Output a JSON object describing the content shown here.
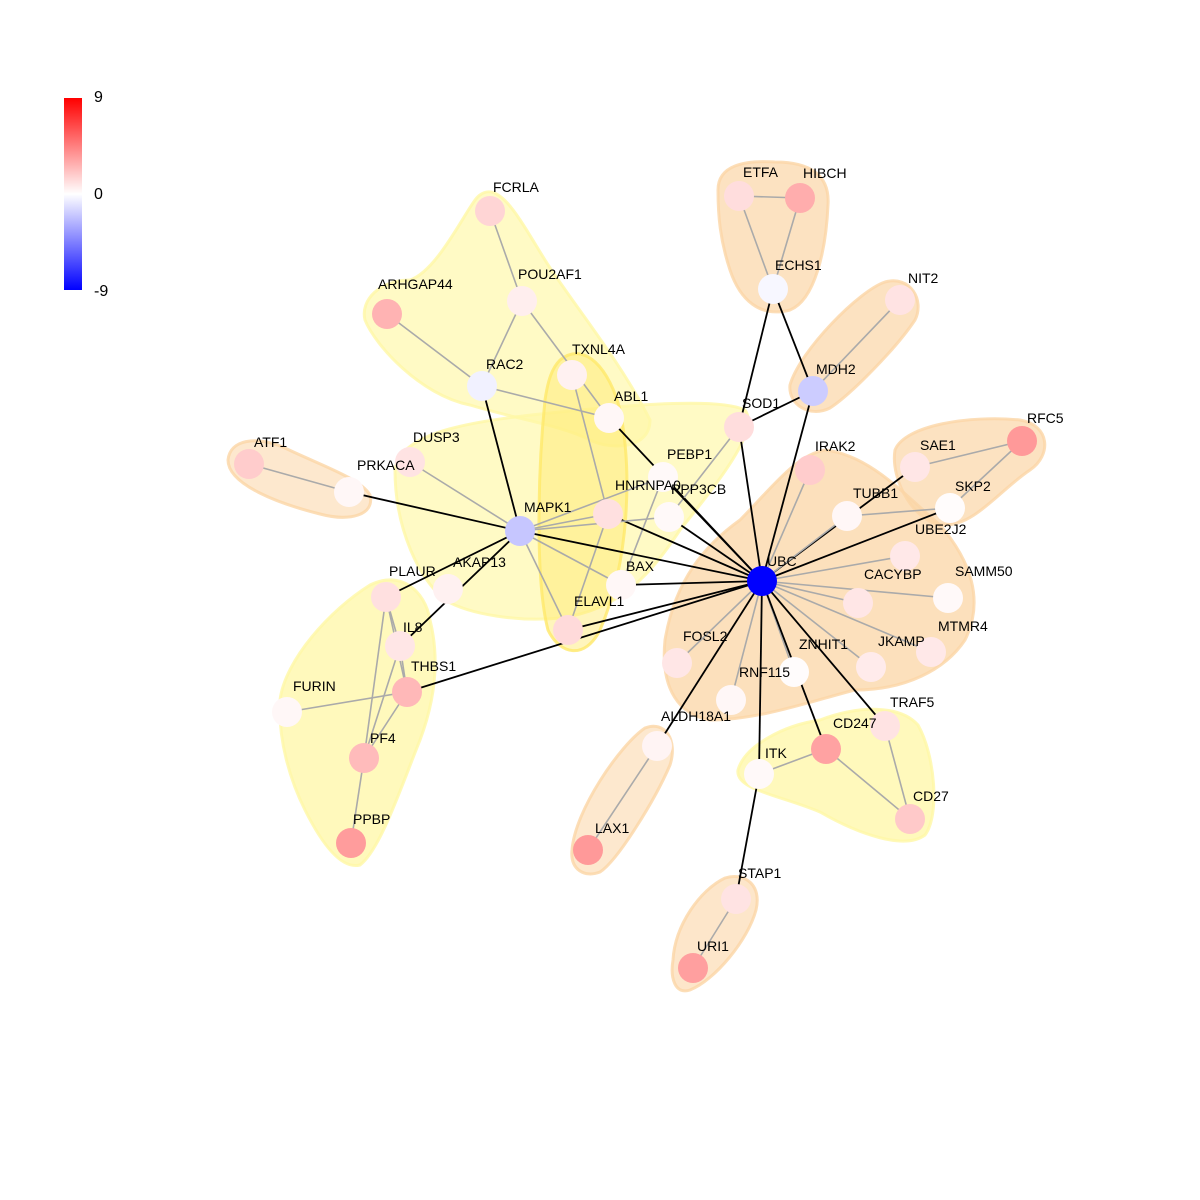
{
  "legend": {
    "max": "9",
    "mid": "0",
    "min": "-9"
  },
  "colors": {
    "edge_hub": "#000000",
    "edge_other": "#aaaaaa",
    "module_yellow": "#fff7a6",
    "module_orange": "#fbd6a6"
  },
  "nodes": [
    {
      "id": "FCRLA",
      "label": "FCRLA",
      "value": 1.5
    },
    {
      "id": "POU2AF1",
      "label": "POU2AF1",
      "value": 0.6
    },
    {
      "id": "ARHGAP44",
      "label": "ARHGAP44",
      "value": 2.7
    },
    {
      "id": "RAC2",
      "label": "RAC2",
      "value": -0.5
    },
    {
      "id": "TXNL4A",
      "label": "TXNL4A",
      "value": 0.5
    },
    {
      "id": "ABL1",
      "label": "ABL1",
      "value": 0.3
    },
    {
      "id": "ETFA",
      "label": "ETFA",
      "value": 1.2
    },
    {
      "id": "HIBCH",
      "label": "HIBCH",
      "value": 2.9
    },
    {
      "id": "ECHS1",
      "label": "ECHS1",
      "value": -0.3
    },
    {
      "id": "NIT2",
      "label": "NIT2",
      "value": 1.0
    },
    {
      "id": "MDH2",
      "label": "MDH2",
      "value": -1.8
    },
    {
      "id": "SOD1",
      "label": "SOD1",
      "value": 1.2
    },
    {
      "id": "RFC5",
      "label": "RFC5",
      "value": 3.6
    },
    {
      "id": "SAE1",
      "label": "SAE1",
      "value": 0.9
    },
    {
      "id": "SKP2",
      "label": "SKP2",
      "value": 0.1
    },
    {
      "id": "ATF1",
      "label": "ATF1",
      "value": 1.8
    },
    {
      "id": "PRKACA",
      "label": "PRKACA",
      "value": 0.3
    },
    {
      "id": "DUSP3",
      "label": "DUSP3",
      "value": 1.0
    },
    {
      "id": "PEBP1",
      "label": "PEBP1",
      "value": 0.2
    },
    {
      "id": "IRAK2",
      "label": "IRAK2",
      "value": 1.8
    },
    {
      "id": "TUBB1",
      "label": "TUBB1",
      "value": 0.3
    },
    {
      "id": "HNRNPA0",
      "label": "HNRNPA0",
      "value": 1.1
    },
    {
      "id": "PPP3CB",
      "label": "PPP3CB",
      "value": 0.2
    },
    {
      "id": "MAPK1",
      "label": "MAPK1",
      "value": -2.0
    },
    {
      "id": "UBE2J2",
      "label": "UBE2J2",
      "value": 0.8
    },
    {
      "id": "UBC",
      "label": "UBC",
      "value": -9.0
    },
    {
      "id": "PLAUR",
      "label": "PLAUR",
      "value": 1.1
    },
    {
      "id": "AKAP13",
      "label": "AKAP13",
      "value": 0.5
    },
    {
      "id": "BAX",
      "label": "BAX",
      "value": 0.3
    },
    {
      "id": "CACYBP",
      "label": "CACYBP",
      "value": 0.9
    },
    {
      "id": "SAMM50",
      "label": "SAMM50",
      "value": 0.2
    },
    {
      "id": "ELAVL1",
      "label": "ELAVL1",
      "value": 1.3
    },
    {
      "id": "IL8",
      "label": "IL8",
      "value": 0.9
    },
    {
      "id": "FOSL2",
      "label": "FOSL2",
      "value": 0.9
    },
    {
      "id": "ZNHIT1",
      "label": "ZNHIT1",
      "value": 0.1
    },
    {
      "id": "JKAMP",
      "label": "JKAMP",
      "value": 0.7
    },
    {
      "id": "MTMR4",
      "label": "MTMR4",
      "value": 0.8
    },
    {
      "id": "THBS1",
      "label": "THBS1",
      "value": 2.5
    },
    {
      "id": "RNF115",
      "label": "RNF115",
      "value": 0.3
    },
    {
      "id": "FURIN",
      "label": "FURIN",
      "value": 0.3
    },
    {
      "id": "TRAF5",
      "label": "TRAF5",
      "value": 1.0
    },
    {
      "id": "ALDH18A1",
      "label": "ALDH18A1",
      "value": 0.4
    },
    {
      "id": "CD247",
      "label": "CD247",
      "value": 3.3
    },
    {
      "id": "PF4",
      "label": "PF4",
      "value": 2.4
    },
    {
      "id": "ITK",
      "label": "ITK",
      "value": 0.2
    },
    {
      "id": "CD27",
      "label": "CD27",
      "value": 1.9
    },
    {
      "id": "PPBP",
      "label": "PPBP",
      "value": 3.5
    },
    {
      "id": "LAX1",
      "label": "LAX1",
      "value": 3.6
    },
    {
      "id": "STAP1",
      "label": "STAP1",
      "value": 1.0
    },
    {
      "id": "URI1",
      "label": "URI1",
      "value": 3.4
    }
  ],
  "edges": [
    {
      "source": "FCRLA",
      "target": "POU2AF1",
      "hub": false
    },
    {
      "source": "POU2AF1",
      "target": "RAC2",
      "hub": false
    },
    {
      "source": "POU2AF1",
      "target": "ABL1",
      "hub": false
    },
    {
      "source": "ARHGAP44",
      "target": "RAC2",
      "hub": false
    },
    {
      "source": "RAC2",
      "target": "ABL1",
      "hub": false
    },
    {
      "source": "RAC2",
      "target": "MAPK1",
      "hub": true
    },
    {
      "source": "TXNL4A",
      "target": "HNRNPA0",
      "hub": false
    },
    {
      "source": "ABL1",
      "target": "UBC",
      "hub": true
    },
    {
      "source": "ETFA",
      "target": "HIBCH",
      "hub": false
    },
    {
      "source": "ETFA",
      "target": "ECHS1",
      "hub": false
    },
    {
      "source": "HIBCH",
      "target": "ECHS1",
      "hub": false
    },
    {
      "source": "ECHS1",
      "target": "SOD1",
      "hub": true
    },
    {
      "source": "ECHS1",
      "target": "MDH2",
      "hub": true
    },
    {
      "source": "NIT2",
      "target": "MDH2",
      "hub": false
    },
    {
      "source": "MDH2",
      "target": "SOD1",
      "hub": true
    },
    {
      "source": "MDH2",
      "target": "UBC",
      "hub": true
    },
    {
      "source": "SOD1",
      "target": "UBC",
      "hub": true
    },
    {
      "source": "SOD1",
      "target": "PPP3CB",
      "hub": false
    },
    {
      "source": "RFC5",
      "target": "SAE1",
      "hub": false
    },
    {
      "source": "RFC5",
      "target": "SKP2",
      "hub": false
    },
    {
      "source": "SAE1",
      "target": "UBC",
      "hub": true
    },
    {
      "source": "SKP2",
      "target": "UBC",
      "hub": true
    },
    {
      "source": "SKP2",
      "target": "TUBB1",
      "hub": false
    },
    {
      "source": "ATF1",
      "target": "PRKACA",
      "hub": false
    },
    {
      "source": "PRKACA",
      "target": "MAPK1",
      "hub": true
    },
    {
      "source": "DUSP3",
      "target": "MAPK1",
      "hub": false
    },
    {
      "source": "PEBP1",
      "target": "MAPK1",
      "hub": false
    },
    {
      "source": "PEBP1",
      "target": "UBC",
      "hub": true
    },
    {
      "source": "PEBP1",
      "target": "BAX",
      "hub": false
    },
    {
      "source": "IRAK2",
      "target": "UBC",
      "hub": false
    },
    {
      "source": "TUBB1",
      "target": "UBC",
      "hub": false
    },
    {
      "source": "HNRNPA0",
      "target": "MAPK1",
      "hub": false
    },
    {
      "source": "HNRNPA0",
      "target": "UBC",
      "hub": true
    },
    {
      "source": "HNRNPA0",
      "target": "ELAVL1",
      "hub": false
    },
    {
      "source": "PPP3CB",
      "target": "MAPK1",
      "hub": false
    },
    {
      "source": "PPP3CB",
      "target": "UBC",
      "hub": true
    },
    {
      "source": "MAPK1",
      "target": "UBC",
      "hub": true
    },
    {
      "source": "MAPK1",
      "target": "BAX",
      "hub": false
    },
    {
      "source": "MAPK1",
      "target": "ELAVL1",
      "hub": false
    },
    {
      "source": "MAPK1",
      "target": "PLAUR",
      "hub": true
    },
    {
      "source": "MAPK1",
      "target": "IL8",
      "hub": true
    },
    {
      "source": "UBE2J2",
      "target": "UBC",
      "hub": false
    },
    {
      "source": "CACYBP",
      "target": "UBC",
      "hub": false
    },
    {
      "source": "SAMM50",
      "target": "UBC",
      "hub": false
    },
    {
      "source": "BAX",
      "target": "UBC",
      "hub": true
    },
    {
      "source": "ELAVL1",
      "target": "UBC",
      "hub": true
    },
    {
      "source": "FOSL2",
      "target": "UBC",
      "hub": false
    },
    {
      "source": "ZNHIT1",
      "target": "UBC",
      "hub": false
    },
    {
      "source": "JKAMP",
      "target": "UBC",
      "hub": false
    },
    {
      "source": "MTMR4",
      "target": "UBC",
      "hub": false
    },
    {
      "source": "RNF115",
      "target": "UBC",
      "hub": false
    },
    {
      "source": "TRAF5",
      "target": "UBC",
      "hub": true
    },
    {
      "source": "CD247",
      "target": "UBC",
      "hub": true
    },
    {
      "source": "ITK",
      "target": "UBC",
      "hub": true
    },
    {
      "source": "ALDH18A1",
      "target": "UBC",
      "hub": true
    },
    {
      "source": "THBS1",
      "target": "UBC",
      "hub": true
    },
    {
      "source": "PLAUR",
      "target": "IL8",
      "hub": false
    },
    {
      "source": "PLAUR",
      "target": "THBS1",
      "hub": false
    },
    {
      "source": "PLAUR",
      "target": "PF4",
      "hub": false
    },
    {
      "source": "IL8",
      "target": "THBS1",
      "hub": false
    },
    {
      "source": "IL8",
      "target": "PF4",
      "hub": false
    },
    {
      "source": "FURIN",
      "target": "THBS1",
      "hub": false
    },
    {
      "source": "THBS1",
      "target": "PF4",
      "hub": false
    },
    {
      "source": "PF4",
      "target": "PPBP",
      "hub": false
    },
    {
      "source": "ALDH18A1",
      "target": "LAX1",
      "hub": false
    },
    {
      "source": "ITK",
      "target": "CD247",
      "hub": false
    },
    {
      "source": "ITK",
      "target": "STAP1",
      "hub": true
    },
    {
      "source": "CD247",
      "target": "CD27",
      "hub": false
    },
    {
      "source": "TRAF5",
      "target": "CD27",
      "hub": false
    },
    {
      "source": "STAP1",
      "target": "URI1",
      "hub": false
    }
  ]
}
